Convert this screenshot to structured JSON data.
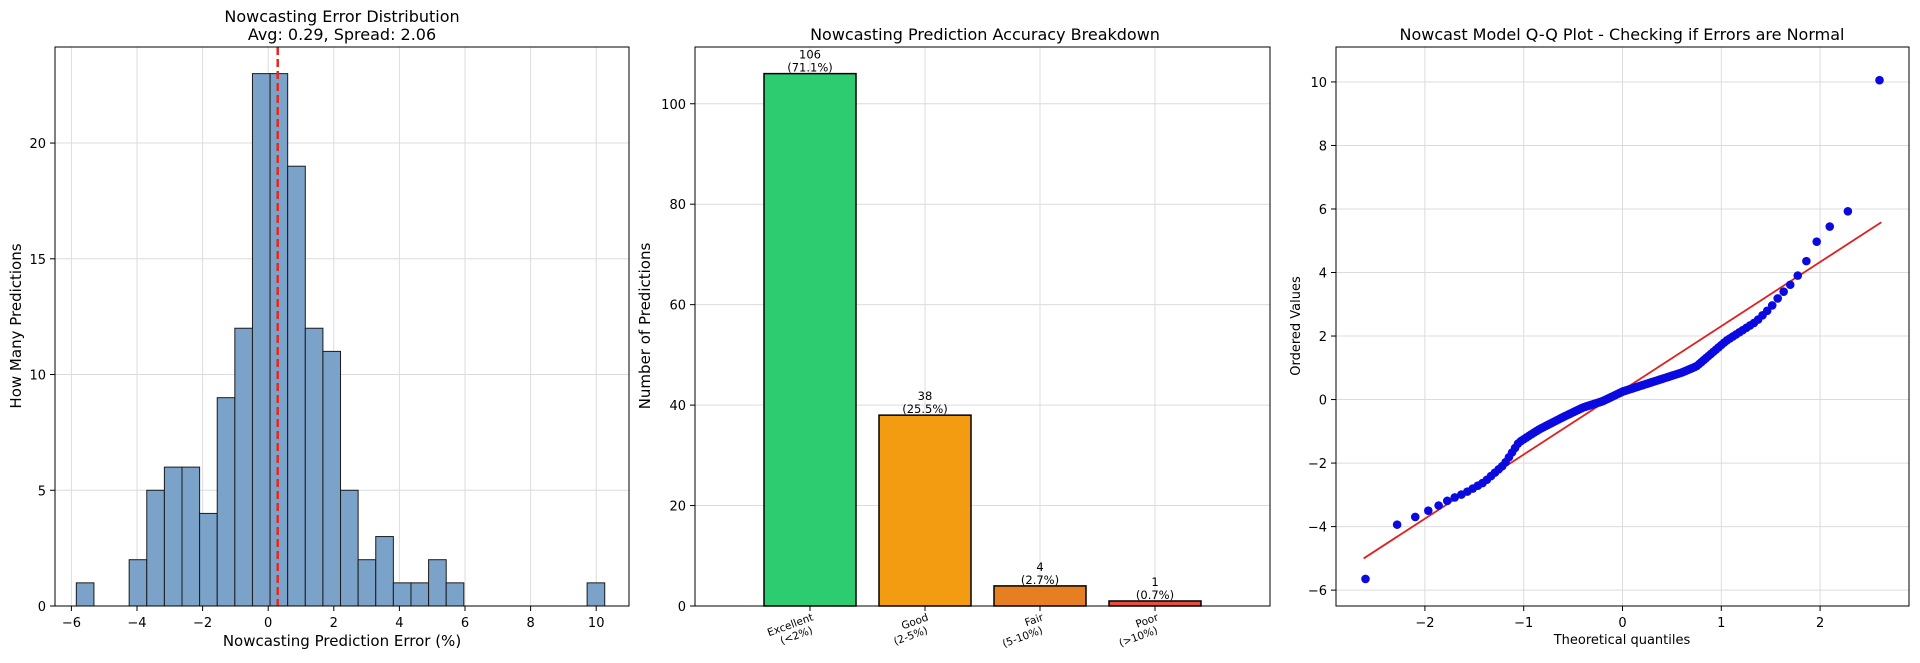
{
  "chart_data": [
    {
      "type": "bar",
      "title": "Nowcasting Error Distribution",
      "subtitle": "Avg: 0.29, Spread: 2.06",
      "xlabel": "Nowcasting Prediction Error (%)",
      "ylabel": "How Many Predictions",
      "xlim": [
        -6.5,
        11.0
      ],
      "ylim": [
        0,
        24.15
      ],
      "xticks": [
        -6,
        -4,
        -2,
        0,
        2,
        4,
        6,
        8,
        10
      ],
      "yticks": [
        0,
        5,
        10,
        15,
        20
      ],
      "bin_start": -5.85,
      "bin_width": 0.537,
      "counts": [
        1,
        0,
        0,
        2,
        5,
        6,
        6,
        4,
        9,
        12,
        23,
        23,
        19,
        12,
        11,
        5,
        2,
        3,
        1,
        1,
        2,
        1,
        0,
        0,
        0,
        0,
        0,
        0,
        0,
        1
      ],
      "mean_line": 0.29,
      "colors": {
        "bar": "#7ba3c9",
        "edge": "#1a1a1a",
        "mean_line": "#e8271e"
      },
      "grid": true
    },
    {
      "type": "bar",
      "title": "Nowcasting Prediction Accuracy Breakdown",
      "ylabel": "Number of Predictions",
      "ylim": [
        0,
        111.3
      ],
      "yticks": [
        0,
        20,
        40,
        60,
        80,
        100
      ],
      "categories": [
        [
          "Excellent",
          "(<2%)"
        ],
        [
          "Good",
          "(2-5%)"
        ],
        [
          "Fair",
          "(5-10%)"
        ],
        [
          "Poor",
          "(>10%)"
        ]
      ],
      "values": [
        106,
        38,
        4,
        1
      ],
      "labels": [
        [
          "106",
          "(71.1%)"
        ],
        [
          "38",
          "(25.5%)"
        ],
        [
          "4",
          "(2.7%)"
        ],
        [
          "1",
          "(0.7%)"
        ]
      ],
      "colors": [
        "#2ecc71",
        "#f39c12",
        "#e67e22",
        "#e74c3c"
      ],
      "grid": true
    },
    {
      "type": "scatter",
      "title": "Nowcast Model Q-Q Plot - Checking if Errors are Normal",
      "xlabel": "Theoretical quantiles",
      "ylabel": "Ordered Values",
      "xlim": [
        -2.9,
        2.9
      ],
      "ylim": [
        -6.5,
        11.1
      ],
      "xticks": [
        -2,
        -1,
        0,
        1,
        2
      ],
      "yticks": [
        -6,
        -4,
        -2,
        0,
        2,
        4,
        6,
        8,
        10
      ],
      "n": 149,
      "fit_line": {
        "slope": 2.02,
        "intercept": 0.29,
        "x_range": [
          -2.62,
          2.62
        ]
      },
      "quantile_knots": {
        "x": [
          -2.62,
          -2.29,
          -2.1,
          -1.9,
          -1.75,
          -1.6,
          -1.4,
          -1.2,
          -1.05,
          -0.85,
          -0.6,
          -0.4,
          -0.2,
          0.0,
          0.2,
          0.4,
          0.6,
          0.75,
          0.9,
          1.05,
          1.2,
          1.35,
          1.5,
          1.6,
          1.68,
          1.75,
          1.82,
          1.9,
          1.98,
          2.08,
          2.29,
          2.62
        ],
        "y": [
          -5.75,
          -3.95,
          -3.7,
          -3.4,
          -3.15,
          -2.95,
          -2.6,
          -2.05,
          -1.35,
          -0.95,
          -0.55,
          -0.25,
          -0.05,
          0.25,
          0.45,
          0.65,
          0.85,
          1.05,
          1.45,
          1.85,
          2.15,
          2.45,
          2.9,
          3.3,
          3.55,
          3.8,
          4.1,
          4.6,
          5.05,
          5.4,
          5.95,
          10.3
        ]
      },
      "colors": {
        "points": "#0a0ae0",
        "line": "#e01f1f"
      },
      "grid": true
    }
  ]
}
